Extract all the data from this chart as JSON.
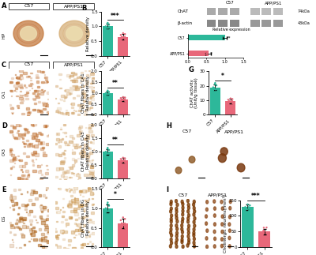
{
  "bar_charts": {
    "B": {
      "groups": [
        "C57",
        "APP/PS1"
      ],
      "means": [
        1.0,
        0.65
      ],
      "errors": [
        0.08,
        0.1
      ],
      "ylabel": "Relative density",
      "colors": [
        "#2db89a",
        "#e8687a"
      ],
      "significance": "***",
      "ylim": [
        0,
        1.5
      ],
      "yticks": [
        0.0,
        0.5,
        1.0,
        1.5
      ],
      "n_dots": 9
    },
    "CA1": {
      "groups": [
        "C57",
        "APP/PS1"
      ],
      "means": [
        1.0,
        0.72
      ],
      "errors": [
        0.08,
        0.08
      ],
      "ylabel": "ChAT fibers in CA1\nRelative density",
      "colors": [
        "#2db89a",
        "#e8687a"
      ],
      "significance": "**",
      "ylim": [
        0,
        2.0
      ],
      "yticks": [
        0.0,
        0.5,
        1.0,
        1.5,
        2.0
      ],
      "n_dots": 9
    },
    "CA3": {
      "groups": [
        "C57",
        "APP/PS1"
      ],
      "means": [
        1.0,
        0.68
      ],
      "errors": [
        0.1,
        0.08
      ],
      "ylabel": "ChAT fibers in CA3\nRelative density",
      "colors": [
        "#2db89a",
        "#e8687a"
      ],
      "significance": "**",
      "ylim": [
        0,
        2.0
      ],
      "yticks": [
        0.0,
        0.5,
        1.0,
        1.5,
        2.0
      ],
      "n_dots": 9
    },
    "DG": {
      "groups": [
        "C57",
        "APP/PS1"
      ],
      "means": [
        1.0,
        0.62
      ],
      "errors": [
        0.1,
        0.12
      ],
      "ylabel": "ChAT fibers in DG\nRelative density",
      "colors": [
        "#2db89a",
        "#e8687a"
      ],
      "significance": "*",
      "ylim": [
        0,
        1.5
      ],
      "yticks": [
        0.0,
        0.5,
        1.0,
        1.5
      ],
      "n_dots": 9
    },
    "G": {
      "groups": [
        "C57",
        "APP/PS1"
      ],
      "means": [
        19.0,
        9.5
      ],
      "errors": [
        2.0,
        1.5
      ],
      "ylabel": "ChAT activity\n(Unit/g tissue)",
      "colors": [
        "#2db89a",
        "#e8687a"
      ],
      "significance": "*",
      "ylim": [
        0,
        30
      ],
      "yticks": [
        0,
        10,
        20,
        30
      ],
      "n_dots": 9
    },
    "I": {
      "groups": [
        "C57",
        "APP/PS1"
      ],
      "means": [
        128,
        50
      ],
      "errors": [
        8,
        8
      ],
      "ylabel": "Cholinergic neurons(/mm²)",
      "colors": [
        "#2db89a",
        "#e8687a"
      ],
      "significance": "***",
      "ylim": [
        0,
        150
      ],
      "yticks": [
        0,
        50,
        100,
        150
      ],
      "n_dots": 6
    }
  },
  "bg_color": "#ffffff",
  "panel_label_fontsize": 6,
  "axis_fontsize": 4.5,
  "tick_fontsize": 4.0,
  "bar_width": 0.45,
  "dot_size": 3,
  "tissue_colors": {
    "hipp_c57_bg": "#e8c090",
    "hipp_c57_fg": "#c07030",
    "hipp_app_bg": "#ecddb0",
    "hipp_app_fg": "#d4aa70",
    "ca_c57_bg": "#ddb07a",
    "ca_c57_fg": "#c07030",
    "ca_app_bg": "#e8c8a0",
    "ca_app_fg": "#d4a870"
  },
  "wb_chat_color_c57": "#b8b8b8",
  "wb_chat_color_app": "#c8c8c8",
  "wb_bactin_color_c57": "#909090",
  "wb_bactin_color_app": "#a0a0a0"
}
